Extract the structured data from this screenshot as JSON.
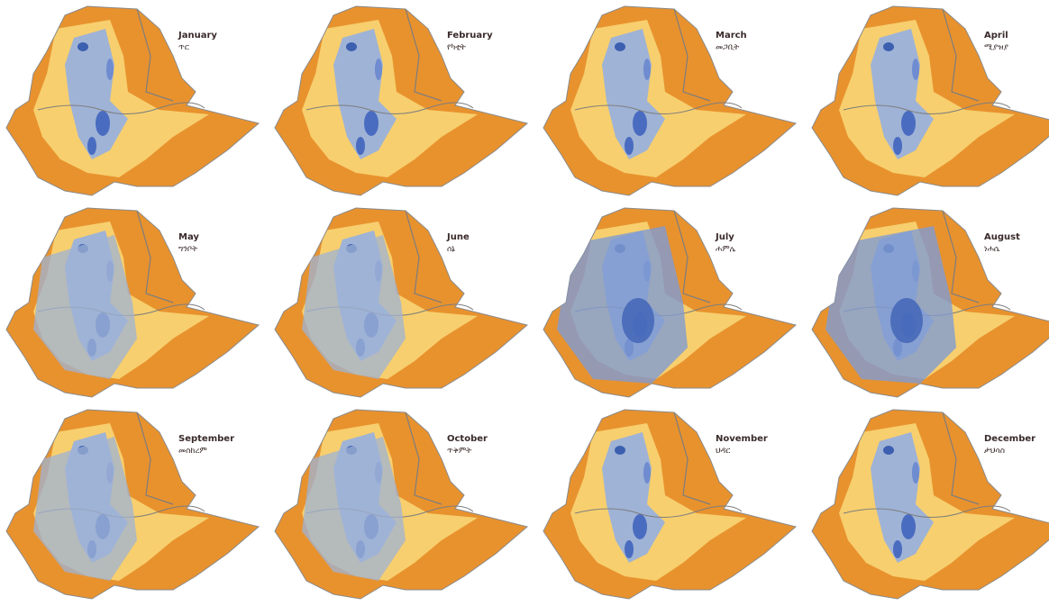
{
  "panels": [
    {
      "month": "January",
      "month_amharic": "ጥር"
    },
    {
      "month": "February",
      "month_amharic": "የካቲት"
    },
    {
      "month": "March",
      "month_amharic": "መጋቢት"
    },
    {
      "month": "April",
      "month_amharic": "ሚያዝያ"
    },
    {
      "month": "May",
      "month_amharic": "ግንቦት"
    },
    {
      "month": "June",
      "month_amharic": "ሰኔ"
    },
    {
      "month": "July",
      "month_amharic": "ሐምሌ"
    },
    {
      "month": "August",
      "month_amharic": "ነሐሴ"
    },
    {
      "month": "September",
      "month_amharic": "መስከረም"
    },
    {
      "month": "October",
      "month_amharic": "ጥቅምት"
    },
    {
      "month": "November",
      "month_amharic": "ህዳር"
    },
    {
      "month": "December",
      "month_amharic": "ታህሳስ"
    }
  ]
}
